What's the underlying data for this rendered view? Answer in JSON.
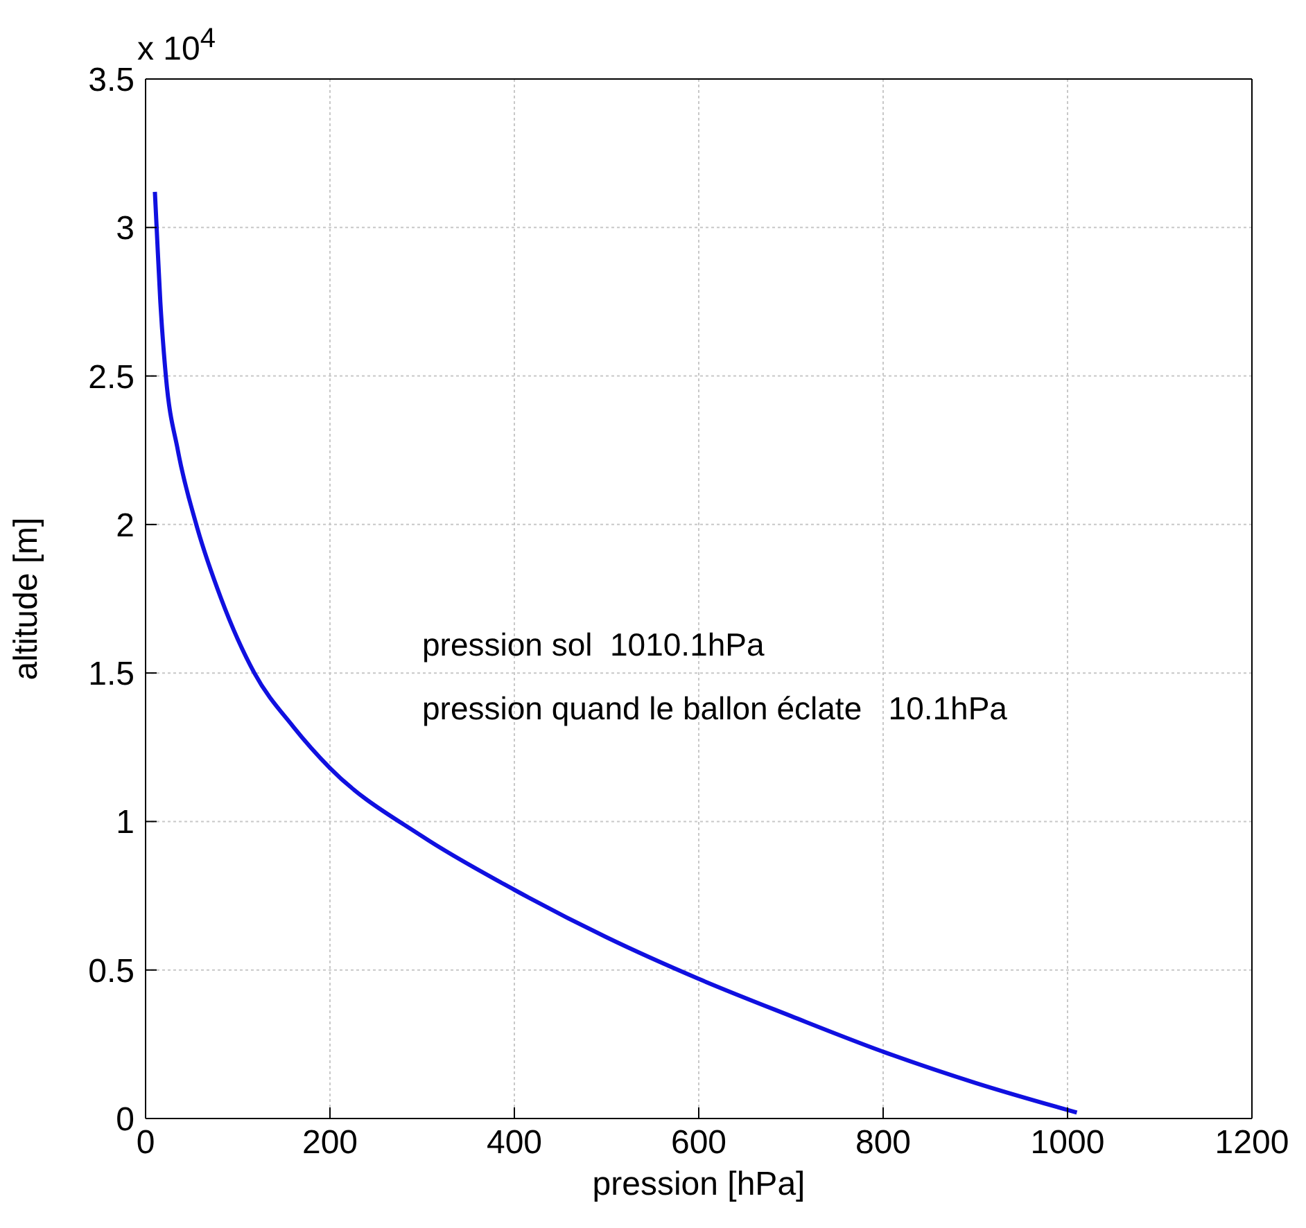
{
  "chart_data": {
    "type": "line",
    "xlabel": "pression [hPa]",
    "ylabel": "altitude [m]",
    "x": [
      10.1,
      12,
      16,
      22,
      35,
      55,
      82,
      118,
      160,
      200,
      300,
      400,
      500,
      600,
      700,
      800,
      900,
      1010.1
    ],
    "series": [
      {
        "color": "#1010e0",
        "values": [
          3.12,
          3.0,
          2.75,
          2.5,
          2.25,
          2.0,
          1.75,
          1.5,
          1.32,
          1.18,
          0.95,
          0.77,
          0.61,
          0.47,
          0.345,
          0.225,
          0.12,
          0.02
        ]
      }
    ],
    "xlim": [
      0,
      1200
    ],
    "xticks": [
      0,
      200,
      400,
      600,
      800,
      1000,
      1200
    ],
    "ylim": [
      0,
      3.5
    ],
    "yticks": [
      0,
      0.5,
      1,
      1.5,
      2,
      2.5,
      3,
      3.5
    ],
    "grid": true,
    "line_style": "solid",
    "marker": "none",
    "annotations": [
      "x 10$^{4}$",
      "pression sol  1010.1hPa",
      "pression quand le ballon éclate   10.1hPa"
    ]
  }
}
